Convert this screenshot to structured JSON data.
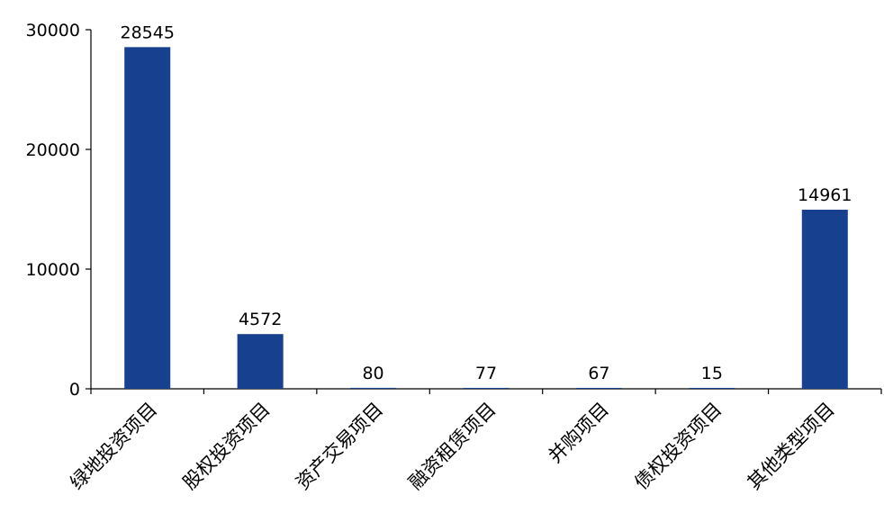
{
  "chart_data": {
    "type": "bar",
    "categories": [
      "绿地投资项目",
      "股权投资项目",
      "资产交易项目",
      "融资租赁项目",
      "并购项目",
      "债权投资项目",
      "其他类型项目"
    ],
    "values": [
      28545,
      4572,
      80,
      77,
      67,
      15,
      14961
    ],
    "data_labels": [
      "28545",
      "4572",
      "80",
      "77",
      "67",
      "15",
      "14961"
    ],
    "y_ticks": [
      "0",
      "10000",
      "20000",
      "30000"
    ],
    "ylim": [
      0,
      30000
    ],
    "grid": false,
    "legend": "none",
    "bar_color": "#17408F"
  }
}
